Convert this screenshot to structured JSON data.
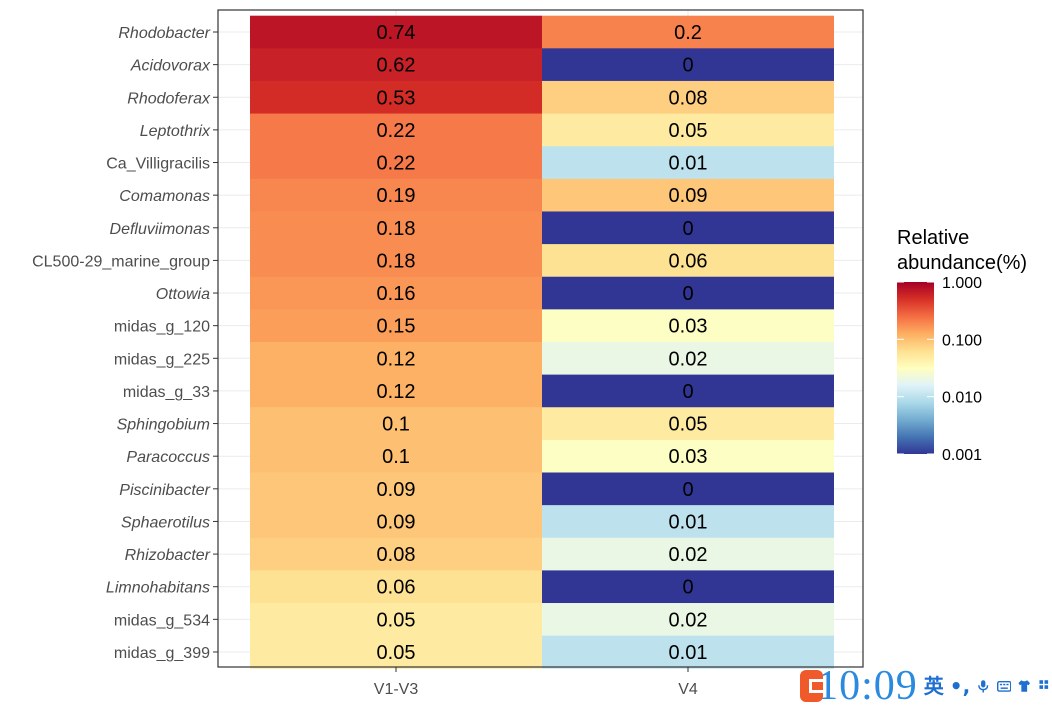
{
  "chart_data": {
    "type": "heatmap",
    "title": "",
    "xlabel": "",
    "ylabel": "",
    "x_categories": [
      "V1-V3",
      "V4"
    ],
    "rows": [
      {
        "name": "Rhodobacter",
        "italic": true,
        "values": [
          0.74,
          0.2
        ]
      },
      {
        "name": "Acidovorax",
        "italic": true,
        "values": [
          0.62,
          0
        ]
      },
      {
        "name": "Rhodoferax",
        "italic": true,
        "values": [
          0.53,
          0.08
        ]
      },
      {
        "name": "Leptothrix",
        "italic": true,
        "values": [
          0.22,
          0.05
        ]
      },
      {
        "name": "Ca_Villigracilis",
        "italic": false,
        "values": [
          0.22,
          0.01
        ]
      },
      {
        "name": "Comamonas",
        "italic": true,
        "values": [
          0.19,
          0.09
        ]
      },
      {
        "name": "Defluviimonas",
        "italic": true,
        "values": [
          0.18,
          0
        ]
      },
      {
        "name": "CL500-29_marine_group",
        "italic": false,
        "values": [
          0.18,
          0.06
        ]
      },
      {
        "name": "Ottowia",
        "italic": true,
        "values": [
          0.16,
          0
        ]
      },
      {
        "name": "midas_g_120",
        "italic": false,
        "values": [
          0.15,
          0.03
        ]
      },
      {
        "name": "midas_g_225",
        "italic": false,
        "values": [
          0.12,
          0.02
        ]
      },
      {
        "name": "midas_g_33",
        "italic": false,
        "values": [
          0.12,
          0
        ]
      },
      {
        "name": "Sphingobium",
        "italic": true,
        "values": [
          0.1,
          0.05
        ]
      },
      {
        "name": "Paracoccus",
        "italic": true,
        "values": [
          0.1,
          0.03
        ]
      },
      {
        "name": "Piscinibacter",
        "italic": true,
        "values": [
          0.09,
          0
        ]
      },
      {
        "name": "Sphaerotilus",
        "italic": true,
        "values": [
          0.09,
          0.01
        ]
      },
      {
        "name": "Rhizobacter",
        "italic": true,
        "values": [
          0.08,
          0.02
        ]
      },
      {
        "name": "Limnohabitans",
        "italic": true,
        "values": [
          0.06,
          0
        ]
      },
      {
        "name": "midas_g_534",
        "italic": false,
        "values": [
          0.05,
          0.02
        ]
      },
      {
        "name": "midas_g_399",
        "italic": false,
        "values": [
          0.05,
          0.01
        ]
      }
    ],
    "legend": {
      "title_lines": [
        "Relative",
        "abundance(%)"
      ],
      "scale": "log10",
      "ticks": [
        "1.000",
        "0.100",
        "0.010",
        "0.001"
      ],
      "tick_values": [
        1,
        0.1,
        0.01,
        0.001
      ],
      "range": [
        0.001,
        1
      ],
      "placement": "right",
      "palette": [
        "#313695",
        "#4575b4",
        "#74add1",
        "#abd9e9",
        "#e0f3f8",
        "#ffffbf",
        "#fee090",
        "#fdae61",
        "#f46d43",
        "#d73027",
        "#a50026"
      ]
    },
    "grid": true
  },
  "taskbar": {
    "clock": "10:09",
    "ime_label": "英",
    "ime_punct": "•,",
    "icons": [
      "ime-logo-icon",
      "microphone-icon",
      "keyboard-icon",
      "shirt-icon",
      "grid-icon"
    ]
  }
}
